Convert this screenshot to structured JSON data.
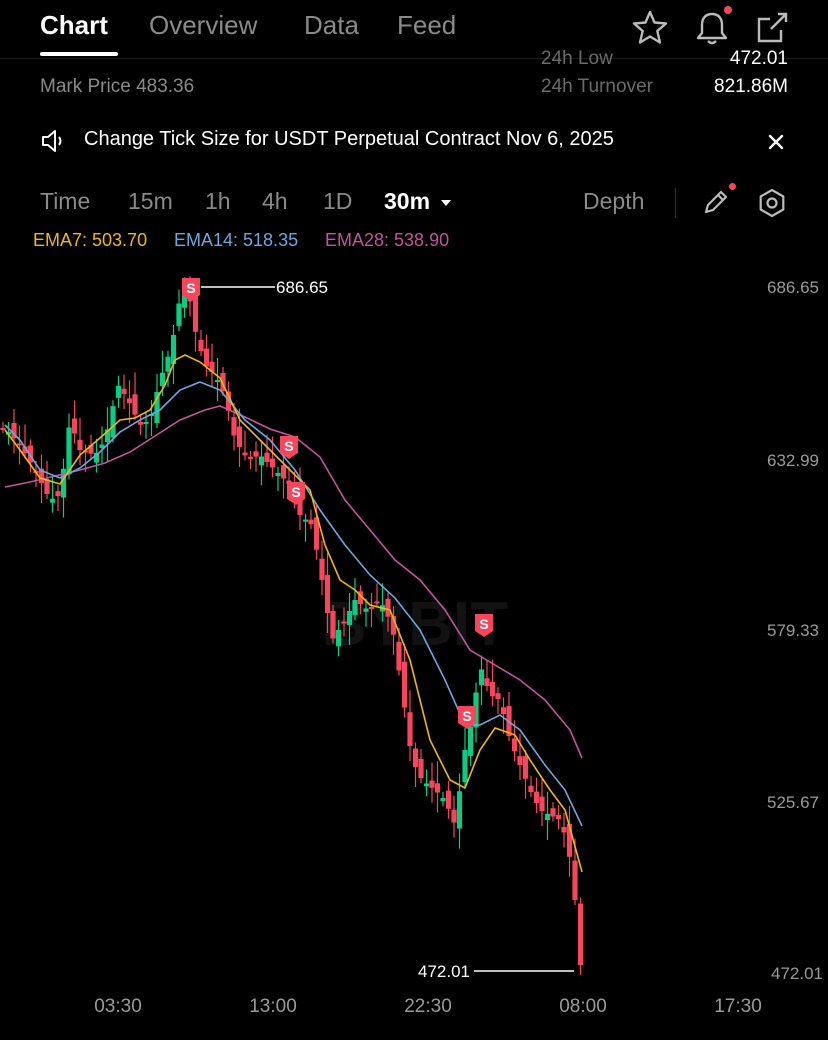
{
  "tabs": [
    {
      "label": "Chart",
      "active": true
    },
    {
      "label": "Overview"
    },
    {
      "label": "Data"
    },
    {
      "label": "Feed"
    }
  ],
  "header_icons": [
    "star-icon",
    "bell-icon",
    "share-icon"
  ],
  "stats": {
    "mark_price_label": "Mark Price 483.36",
    "low_label": "24h Low",
    "low_value": "472.01",
    "turnover_label": "24h Turnover",
    "turnover_value": "821.86M"
  },
  "banner": {
    "text": "Change Tick Size for USDT Perpetual Contract Nov 6, 2025"
  },
  "timeframes": [
    {
      "label": "Time"
    },
    {
      "label": "15m"
    },
    {
      "label": "1h"
    },
    {
      "label": "4h"
    },
    {
      "label": "1D"
    },
    {
      "label": "30m",
      "active": true
    }
  ],
  "depth_label": "Depth",
  "ema": [
    {
      "label": "EMA7: 503.70",
      "color": "#f0b90b"
    },
    {
      "label": "EMA14: 518.35",
      "color": "#6ea8dc"
    },
    {
      "label": "EMA28: 538.90",
      "color": "#c2559d"
    }
  ],
  "colors": {
    "up": "#0ecb81",
    "down": "#f6465d",
    "ema7": "#f0b90b",
    "ema14": "#6ea8dc",
    "ema28": "#c2559d"
  },
  "chart_data": {
    "type": "candlestick",
    "y_ticks": [
      "686.65",
      "632.99",
      "579.33",
      "525.67",
      "472.01"
    ],
    "x_ticks": [
      "03:30",
      "13:00",
      "22:30",
      "08:00",
      "17:30"
    ],
    "high_label": "686.65",
    "low_label": "472.01",
    "sell_marker_label": "S",
    "watermark": "BYBIT"
  }
}
